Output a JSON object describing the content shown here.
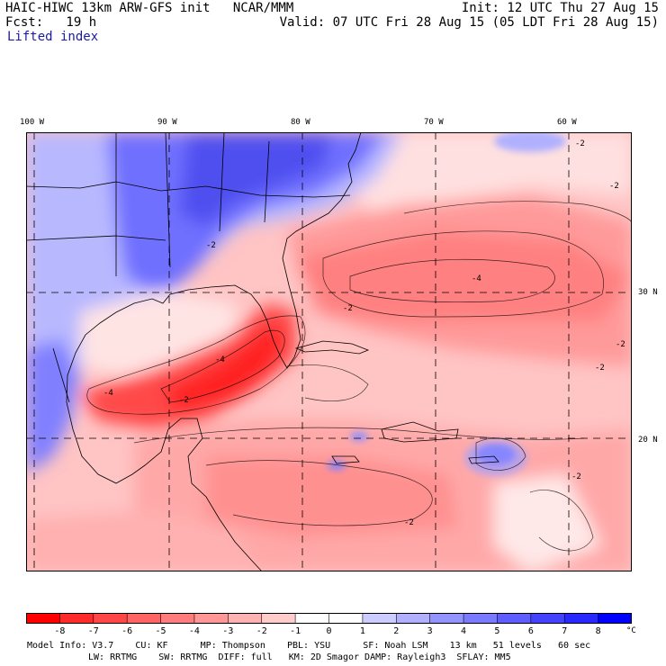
{
  "header": {
    "model_title": "HAIC-HIWC 13km ARW-GFS init   NCAR/MMM",
    "init": "Init: 12 UTC Thu 27 Aug 15",
    "fcst": "Fcst:   19 h",
    "valid": "Valid: 07 UTC Fri 28 Aug 15 (05 LDT Fri 28 Aug 15)",
    "field": "Lifted index"
  },
  "map": {
    "lon_labels": [
      "100 W",
      "90 W",
      "80 W",
      "70 W",
      "60 W"
    ],
    "lat_labels": [
      "30 N",
      "20 N"
    ],
    "contour_labels": [
      "-2",
      "-2",
      "-2",
      "-2",
      "-2",
      "-2",
      "-4",
      "-4",
      "-4",
      "-2",
      "-2",
      "-2"
    ]
  },
  "colorbar": {
    "ticks": [
      "-8",
      "-7",
      "-6",
      "-5",
      "-4",
      "-3",
      "-2",
      "-1",
      "0",
      "1",
      "2",
      "3",
      "4",
      "5",
      "6",
      "7",
      "8"
    ],
    "unit": "°C",
    "colors": [
      "#ff0000",
      "#ff2a2a",
      "#ff4747",
      "#ff6464",
      "#ff7c7c",
      "#ff9797",
      "#ffb2b2",
      "#ffcccc",
      "#ffffff",
      "#ffffff",
      "#ccccff",
      "#b0b0ff",
      "#9494ff",
      "#7a7aff",
      "#5e5eff",
      "#4343ff",
      "#2828ff",
      "#0000ff"
    ]
  },
  "footer": {
    "line1": "Model Info: V3.7    CU: KF      MP: Thompson    PBL: YSU      SF: Noah LSM    13 km   51 levels   60 sec",
    "line2": "LW: RRTMG    SW: RRTMG  DIFF: full   KM: 2D Smagor DAMP: Rayleigh3  SFLAY: MM5"
  }
}
